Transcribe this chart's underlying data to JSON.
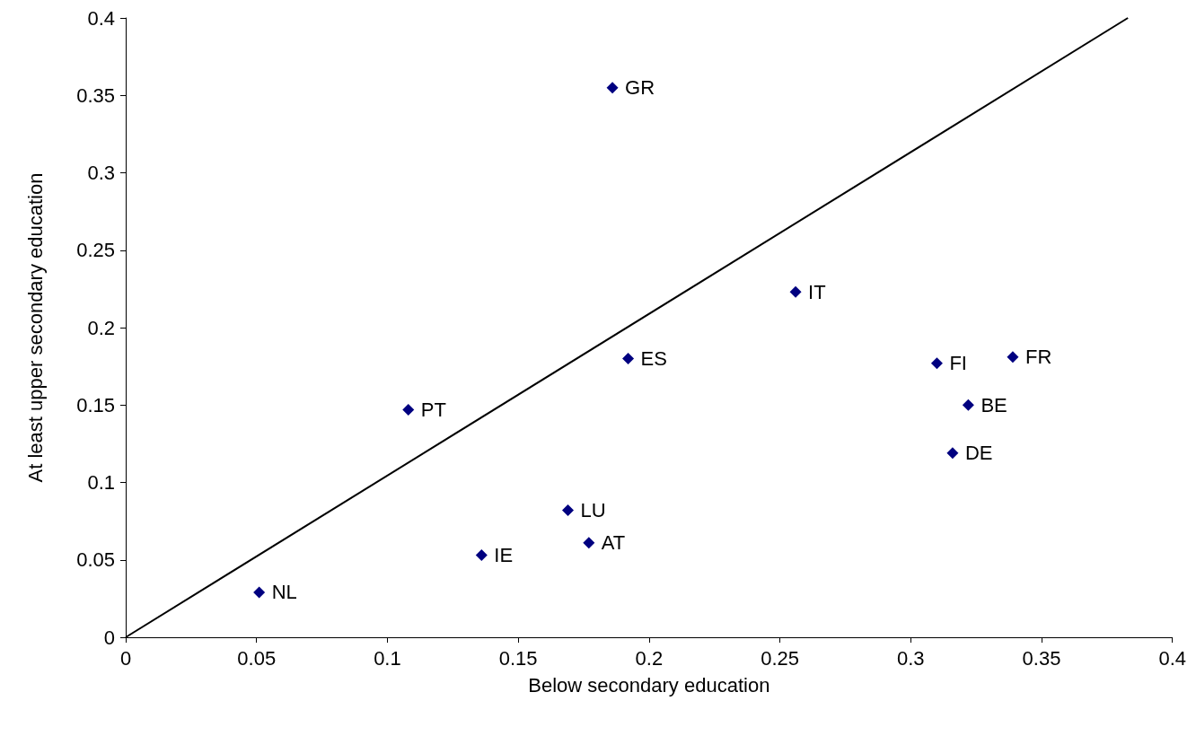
{
  "chart_data": {
    "type": "scatter",
    "xlabel": "Below secondary education",
    "ylabel": "At least upper secondary education",
    "x": [
      0.186,
      0.256,
      0.192,
      0.108,
      0.31,
      0.339,
      0.322,
      0.316,
      0.169,
      0.177,
      0.136,
      0.051
    ],
    "series": [
      {
        "color": "#000080",
        "marker": "diamond",
        "values": [
          0.355,
          0.223,
          0.18,
          0.147,
          0.177,
          0.181,
          0.15,
          0.119,
          0.082,
          0.061,
          0.053,
          0.029
        ]
      },
      {
        "type": "line",
        "color": "#000000",
        "marker": "none",
        "x": [
          0,
          0.383
        ],
        "values": [
          0,
          0.4
        ]
      }
    ],
    "annotations": [
      {
        "text": "GR",
        "x": 0.186,
        "y": 0.355
      },
      {
        "text": "IT",
        "x": 0.256,
        "y": 0.223
      },
      {
        "text": "ES",
        "x": 0.192,
        "y": 0.18
      },
      {
        "text": "PT",
        "x": 0.108,
        "y": 0.147
      },
      {
        "text": "FI",
        "x": 0.31,
        "y": 0.177
      },
      {
        "text": "FR",
        "x": 0.339,
        "y": 0.181
      },
      {
        "text": "BE",
        "x": 0.322,
        "y": 0.15
      },
      {
        "text": "DE",
        "x": 0.316,
        "y": 0.119
      },
      {
        "text": "LU",
        "x": 0.169,
        "y": 0.082
      },
      {
        "text": "AT",
        "x": 0.177,
        "y": 0.061
      },
      {
        "text": "IE",
        "x": 0.136,
        "y": 0.053
      },
      {
        "text": "NL",
        "x": 0.051,
        "y": 0.029
      }
    ],
    "xlim": [
      0,
      0.4
    ],
    "ylim": [
      0,
      0.4
    ],
    "xticks": [
      0,
      0.05,
      0.1,
      0.15,
      0.2,
      0.25,
      0.3,
      0.35,
      0.4
    ],
    "yticks": [
      0,
      0.05,
      0.1,
      0.15,
      0.2,
      0.25,
      0.3,
      0.35,
      0.4
    ],
    "grid": false
  }
}
